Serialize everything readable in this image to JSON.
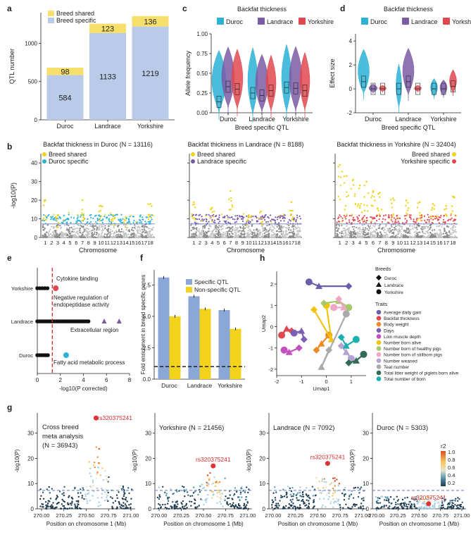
{
  "panel_letters": [
    "a",
    "b",
    "c",
    "d",
    "e",
    "f",
    "g",
    "h"
  ],
  "colors": {
    "shared": "#f7df6b",
    "specific": "#b9cbe8",
    "duroc": "#2bb2d6",
    "landrace": "#7b5aa6",
    "yorkshire": "#e0484f",
    "yellow": "#f2d21b",
    "gray": "#9e9e9e",
    "specific_bar": "#8aa7d8",
    "threshold": "#7f8fcf"
  },
  "chart_data": [
    {
      "id": "a",
      "type": "bar",
      "stacked": true,
      "categories": [
        "Duroc",
        "Landrace",
        "Yorkshire"
      ],
      "series": [
        {
          "name": "Breed specific",
          "values": [
            584,
            1133,
            1219
          ]
        },
        {
          "name": "Breed shared",
          "values": [
            98,
            123,
            136
          ]
        }
      ],
      "ylabel": "QTL number",
      "ylim": [
        0,
        1400
      ],
      "yticks": [
        0,
        500,
        1000
      ],
      "legend": [
        "Breed shared",
        "Breed specific"
      ]
    },
    {
      "id": "c",
      "type": "violin",
      "title": "Backfat thickness",
      "legend": [
        "Duroc",
        "Landrace",
        "Yorkshire"
      ],
      "groups": [
        "Duroc",
        "Landrace",
        "Yorkshire"
      ],
      "ylabel": "Allele frequency",
      "xlabel": "Breed specific QTL",
      "ylim": [
        0,
        1
      ],
      "yticks": [
        "0.00",
        "0.25",
        "0.50",
        "0.75",
        "1.00"
      ],
      "medians": [
        [
          0.14,
          0.33,
          0.3
        ],
        [
          0.25,
          0.22,
          0.28
        ],
        [
          0.32,
          0.31,
          0.28
        ]
      ]
    },
    {
      "id": "d",
      "type": "violin",
      "title": "Backfat thickness",
      "legend": [
        "Duroc",
        "Landrace",
        "Yorkshire"
      ],
      "groups": [
        "Duroc",
        "Landrace",
        "Yorkshire"
      ],
      "ylabel": "Effect size",
      "xlabel": "Breed specific QTL",
      "ylim": [
        -2,
        4.6
      ],
      "yticks": [
        "-2",
        "0",
        "2",
        "4"
      ],
      "medians": [
        [
          0.6,
          0.0,
          0.0
        ],
        [
          0.0,
          0.6,
          0.0
        ],
        [
          0.0,
          0.0,
          0.2
        ]
      ]
    },
    {
      "id": "b",
      "type": "scatter",
      "subtype": "manhattan",
      "panels": [
        {
          "title": "Backfat thickness in Duroc (N = 13116)",
          "legend": [
            "Breed shared",
            "Duroc specific"
          ],
          "specific_color": "duroc"
        },
        {
          "title": "Backfat thickness in Landrace (N = 8188)",
          "legend": [
            "Breed shared",
            "Landrace specific"
          ],
          "specific_color": "landrace"
        },
        {
          "title": "Backfat thickness in Yorkshire (N = 32404)",
          "legend": [
            "Breed shared",
            "Yorkshire specific"
          ],
          "specific_color": "yorkshire"
        }
      ],
      "xlabel": "Chromosome",
      "chrom_labels": [
        "1",
        "2",
        "3",
        "4",
        "5",
        "6",
        "7",
        "8",
        "9",
        "10",
        "11",
        "12",
        "13",
        "14",
        "15",
        "16",
        "17",
        "18"
      ],
      "ylabel": "-log10(P)",
      "ylim": [
        0,
        45
      ],
      "yticks": [
        "0",
        "10",
        "20",
        "30",
        "40"
      ],
      "threshold": 7.3,
      "peaks": [
        [
          [
            1,
            20
          ],
          [
            7,
            20
          ],
          [
            10,
            17
          ],
          [
            18,
            18
          ],
          [
            3,
            12
          ],
          [
            12,
            12
          ],
          [
            14,
            11
          ]
        ],
        [
          [
            1,
            19
          ],
          [
            7,
            25
          ],
          [
            4,
            16
          ],
          [
            12,
            14
          ],
          [
            17,
            19
          ],
          [
            10,
            12
          ]
        ],
        [
          [
            1,
            39
          ],
          [
            2,
            33
          ],
          [
            3,
            31
          ],
          [
            4,
            28
          ],
          [
            5,
            30
          ],
          [
            6,
            25
          ],
          [
            7,
            24
          ],
          [
            9,
            21
          ],
          [
            11,
            20
          ],
          [
            13,
            19
          ],
          [
            15,
            18
          ],
          [
            17,
            17
          ],
          [
            18,
            22
          ]
        ]
      ]
    },
    {
      "id": "e",
      "type": "scatter",
      "subtype": "enrichment",
      "categories": [
        "Yorkshire",
        "Landrace",
        "Duroc"
      ],
      "xlabel": "-log10(P corrected)",
      "xlim": [
        0,
        8
      ],
      "xticks": [
        "0",
        "2",
        "4",
        "6",
        "8"
      ],
      "threshold": 1.3,
      "annotations": [
        {
          "text": "Cytokine binding",
          "group": "Yorkshire",
          "x": 1.6
        },
        {
          "text": "Negative regulation of",
          "group": "Landrace",
          "x": 5.8
        },
        {
          "text": "endopeptidase activity",
          "group": "Landrace",
          "x": 5.8
        },
        {
          "text": "Extracellular region",
          "group": "Landrace",
          "x": 7.1
        },
        {
          "text": "Fatty acid metabolic process",
          "group": "Duroc",
          "x": 2.5
        }
      ]
    },
    {
      "id": "f",
      "type": "bar",
      "categories": [
        "Duroc",
        "Landrace",
        "Yorkshire"
      ],
      "series": [
        {
          "name": "Specific QTL",
          "values": [
            8.1,
            6.6,
            5.5
          ]
        },
        {
          "name": "Non-specific QTL",
          "values": [
            5.0,
            5.6,
            4.0
          ]
        }
      ],
      "ylabel": "Fold enrichment in breed specific genes",
      "ylim": [
        0,
        8.7
      ],
      "yticks": [
        "0.0",
        "2.5",
        "5.0",
        "7.5"
      ],
      "reference_line": 1
    },
    {
      "id": "h",
      "type": "scatter",
      "subtype": "umap",
      "xlabel": "Umap1",
      "ylabel": "Umap2",
      "xlim": [
        -2,
        1.6
      ],
      "ylim": [
        -2.3,
        2.6
      ],
      "xticks": [
        "-2",
        "-1",
        "0",
        "1"
      ],
      "yticks": [
        "-2",
        "-1",
        "0",
        "1",
        "2"
      ],
      "breeds_title": "Breeds",
      "breeds": [
        "Duroc",
        "Landrace",
        "Yorkshire"
      ],
      "traits_title": "Traits",
      "traits": [
        {
          "name": "Average daily gain",
          "color": "#6a5fa8"
        },
        {
          "name": "Backfat thickness",
          "color": "#e0484f"
        },
        {
          "name": "Body weight",
          "color": "#f08a24"
        },
        {
          "name": "Days",
          "color": "#7a5fb5"
        },
        {
          "name": "Loin muscle depth",
          "color": "#c44fc2"
        },
        {
          "name": "Number born alive",
          "color": "#f1c40f"
        },
        {
          "name": "Number born of healthy pigs",
          "color": "#a6c86a"
        },
        {
          "name": "Number born of stillborn  pigs",
          "color": "#f0a7c7"
        },
        {
          "name": "Number weaned",
          "color": "#b7a2d4"
        },
        {
          "name": "Teat number",
          "color": "#aaaaaa"
        },
        {
          "name": "Total litter weight of piglets born alive",
          "color": "#2f6b55"
        },
        {
          "name": "Total number of born",
          "color": "#1ab0b0"
        }
      ]
    },
    {
      "id": "g",
      "type": "scatter",
      "subtype": "locuszoom",
      "panels": [
        {
          "title": "Cross breed",
          "title2": "meta analysis",
          "title3": "(N = 36943)",
          "snp": "rs320375241",
          "lead": 36
        },
        {
          "title": "Yorkshire (N = 21456)",
          "snp": "rs320375241",
          "lead": 17
        },
        {
          "title": "Landrace (N = 7092)",
          "snp": "rs320375241",
          "lead": 18
        },
        {
          "title": "Duroc (N = 5303)",
          "snp": "rs320375241",
          "lead": 2
        }
      ],
      "xlabel": "Position on chromosome 1 (Mb)",
      "xticks": [
        "270.00",
        "270.25",
        "270.50",
        "270.75",
        "271.00"
      ],
      "ylabel": "-log10(P)",
      "yticks_meta": [
        "0",
        "10",
        "20",
        "30"
      ],
      "ylim_meta": [
        0,
        38
      ],
      "yticks_small": [
        "0",
        "10",
        "20",
        "30"
      ],
      "ylim_small": [
        0,
        38
      ],
      "threshold": 7.3,
      "colorbar_title": "r2",
      "colorbar_ticks": [
        "1.0",
        "0.8",
        "0.6",
        "0.4",
        "0.2"
      ]
    }
  ]
}
